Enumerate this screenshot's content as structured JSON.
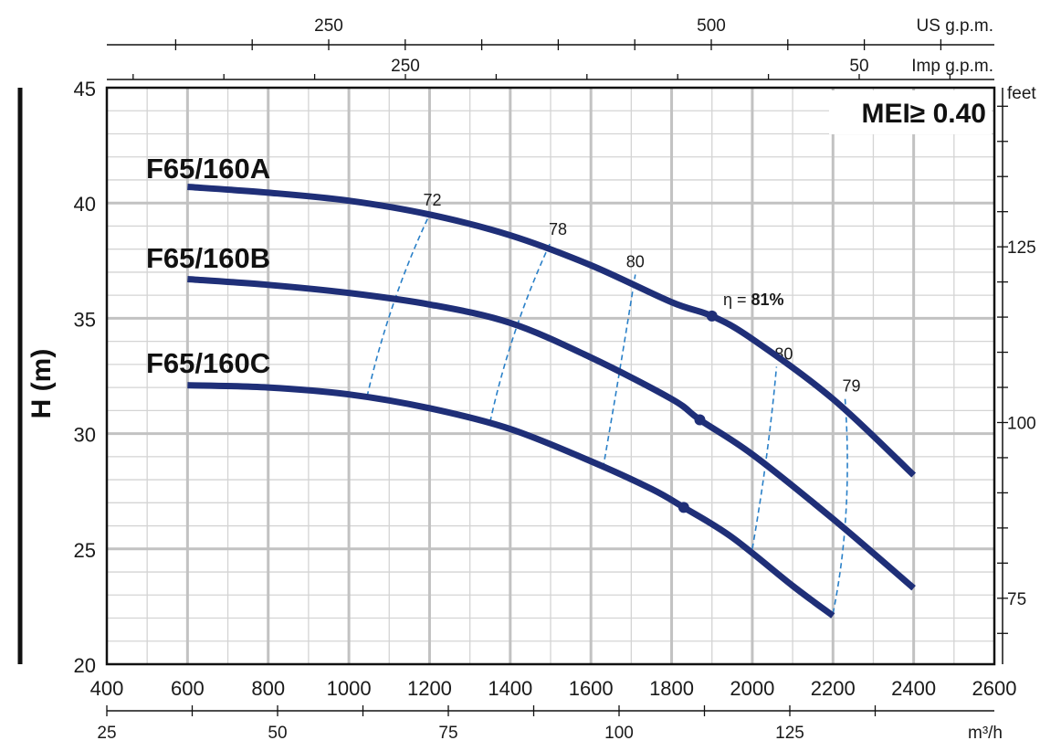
{
  "chart_data": {
    "type": "line",
    "ylabel": "H (m)",
    "x_unit_bottom": "m³/h",
    "x_unit_top_us": "US g.p.m.",
    "x_unit_top_imp": "Imp g.p.m.",
    "y_unit_right": "feet",
    "badge": "MEI≥ 0.40",
    "xlim": [
      400,
      2600
    ],
    "ylim": [
      20,
      45
    ],
    "grid": true,
    "x_ticks": [
      "400",
      "600",
      "800",
      "1000",
      "1200",
      "1400",
      "1600",
      "1800",
      "2000",
      "2200",
      "2400",
      "2600"
    ],
    "y_ticks": [
      "20",
      "25",
      "30",
      "35",
      "40",
      "45"
    ],
    "m3h_ticks": [
      "25",
      "50",
      "75",
      "100",
      "125"
    ],
    "us_gpm_ticks": [
      "250",
      "500"
    ],
    "imp_gpm_ticks": [
      "250",
      "50"
    ],
    "feet_ticks": [
      "75",
      "100",
      "125"
    ],
    "series": [
      {
        "name": "F65/160A",
        "x": [
          600,
          800,
          1000,
          1200,
          1400,
          1600,
          1800,
          1900,
          2000,
          2200,
          2400
        ],
        "y": [
          40.7,
          40.45,
          40.1,
          39.5,
          38.6,
          37.3,
          35.7,
          35.1,
          34.1,
          31.5,
          28.2
        ]
      },
      {
        "name": "F65/160B",
        "x": [
          600,
          800,
          1000,
          1200,
          1400,
          1600,
          1800,
          1870,
          2000,
          2200,
          2400
        ],
        "y": [
          36.7,
          36.45,
          36.1,
          35.6,
          34.8,
          33.3,
          31.5,
          30.6,
          29.1,
          26.3,
          23.3
        ]
      },
      {
        "name": "F65/160C",
        "x": [
          600,
          800,
          1000,
          1200,
          1400,
          1600,
          1750,
          1830,
          1950,
          2100,
          2200
        ],
        "y": [
          32.1,
          32.0,
          31.7,
          31.1,
          30.2,
          28.8,
          27.6,
          26.8,
          25.5,
          23.4,
          22.1
        ]
      }
    ],
    "efficiency_lines": [
      {
        "label": "72",
        "points": [
          [
            1045,
            31.6
          ],
          [
            1100,
            35.8
          ],
          [
            1200,
            39.5
          ]
        ]
      },
      {
        "label": "78",
        "points": [
          [
            1350,
            30.5
          ],
          [
            1400,
            34.5
          ],
          [
            1500,
            38.3
          ]
        ]
      },
      {
        "label": "80",
        "points": [
          [
            1630,
            28.5
          ],
          [
            1670,
            32.5
          ],
          [
            1710,
            36.9
          ]
        ]
      },
      {
        "label": "80",
        "points": [
          [
            2000,
            25.0
          ],
          [
            2040,
            29.0
          ],
          [
            2060,
            32.9
          ]
        ]
      },
      {
        "label": "79",
        "points": [
          [
            2200,
            22.2
          ],
          [
            2250,
            26.5
          ],
          [
            2230,
            31.5
          ]
        ]
      }
    ],
    "bep_points": [
      [
        1900,
        35.1
      ],
      [
        1870,
        30.6
      ],
      [
        1830,
        26.8
      ]
    ],
    "bep_label_prefix": "η = ",
    "bep_label_value": "81%"
  }
}
